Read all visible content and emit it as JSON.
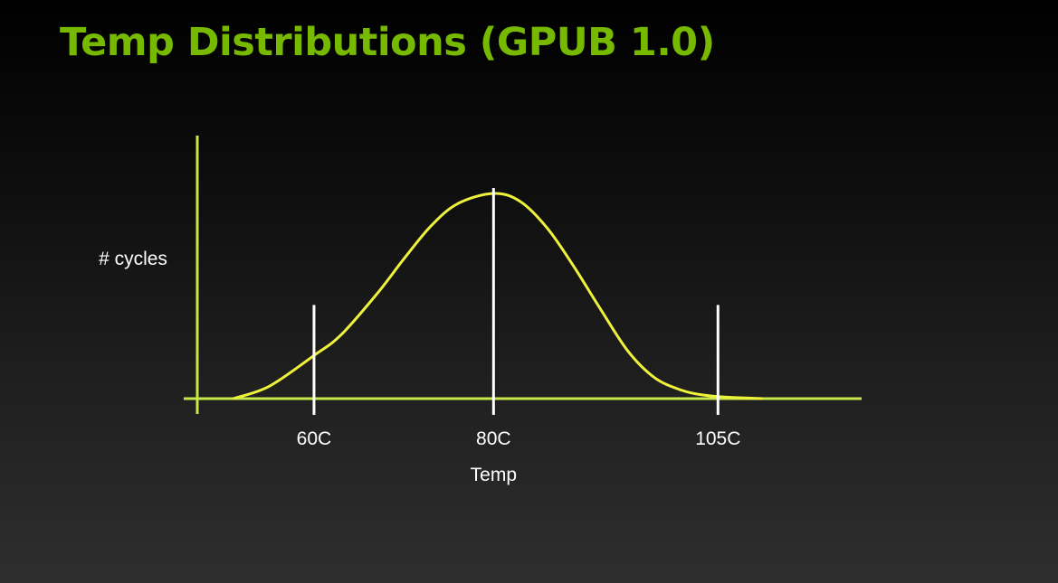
{
  "slide": {
    "title": "Temp Distributions (GPUB 1.0)"
  },
  "colors": {
    "title": "#76b900",
    "axis": "#c8e84a",
    "curve": "#eef23a",
    "markers": "#ffffff"
  },
  "chart_data": {
    "type": "line",
    "title": "Temp Distributions (GPUB 1.0)",
    "xlabel": "Temp",
    "ylabel": "# cycles",
    "x_unit": "C",
    "xlim": [
      47,
      121
    ],
    "ylim": [
      0,
      1
    ],
    "grid": false,
    "legend": "none",
    "tick_values": [
      60,
      80,
      105
    ],
    "tick_labels": [
      "60C",
      "80C",
      "105C"
    ],
    "markers": [
      {
        "x": 60,
        "height": 0.43
      },
      {
        "x": 80,
        "height": 1.0
      },
      {
        "x": 105,
        "height": 0.43
      }
    ],
    "series": [
      {
        "x": [
          51,
          55,
          60,
          63,
          67,
          70,
          73,
          76,
          80,
          83,
          86,
          89,
          92,
          95,
          98,
          101,
          103,
          105,
          107,
          110
        ],
        "values": [
          0.0,
          0.06,
          0.21,
          0.31,
          0.51,
          0.68,
          0.84,
          0.95,
          1.0,
          0.96,
          0.83,
          0.64,
          0.43,
          0.23,
          0.1,
          0.04,
          0.02,
          0.01,
          0.005,
          0.0
        ]
      }
    ]
  }
}
